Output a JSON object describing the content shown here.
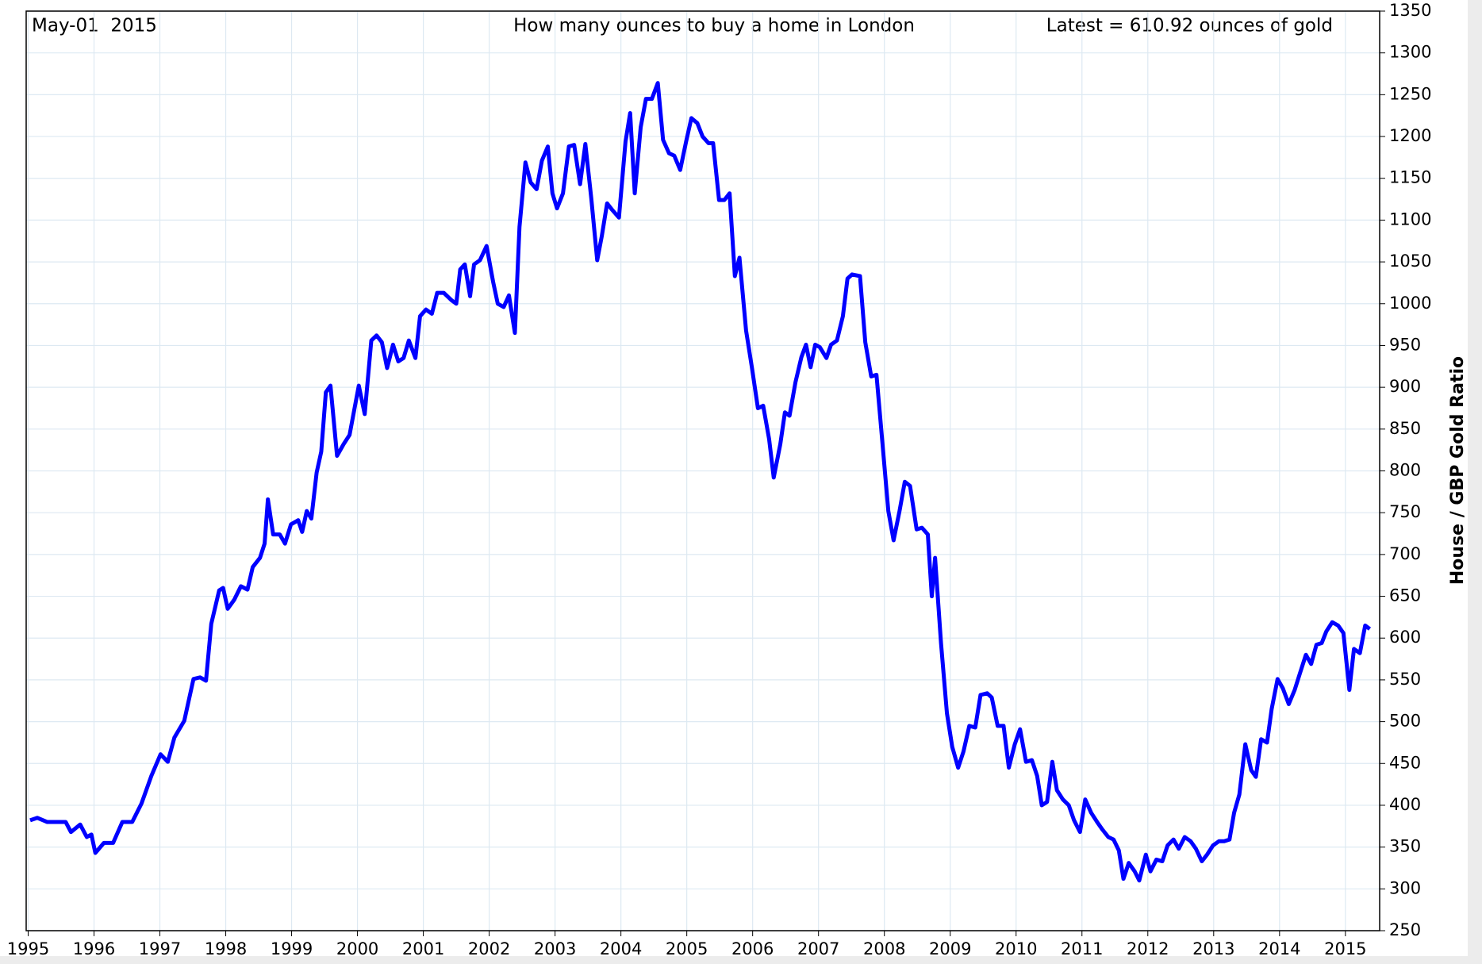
{
  "chart_data": {
    "type": "line",
    "title": "How many ounces to buy a home in London",
    "subtitle": "May-01  2015",
    "annotations": [
      "Latest = 610.92 ounces of gold"
    ],
    "y_label": "House / GBP Gold Ratio",
    "y_axis_side": "right",
    "grid": true,
    "xlim": [
      1994.97,
      2015.52
    ],
    "xticks": [
      1995,
      1996,
      1997,
      1998,
      1999,
      2000,
      2001,
      2002,
      2003,
      2004,
      2005,
      2006,
      2007,
      2008,
      2009,
      2010,
      2011,
      2012,
      2013,
      2014,
      2015
    ],
    "ylim": [
      250,
      1350
    ],
    "yticks": [
      250,
      300,
      350,
      400,
      450,
      500,
      550,
      600,
      650,
      700,
      750,
      800,
      850,
      900,
      950,
      1000,
      1050,
      1100,
      1150,
      1200,
      1250,
      1300,
      1350
    ],
    "series": [
      {
        "name": "House / GBP Gold Ratio",
        "color": "#0000ff",
        "x": [
          1995.03,
          1995.14,
          1995.29,
          1995.57,
          1995.65,
          1995.79,
          1995.89,
          1995.96,
          1996.02,
          1996.15,
          1996.29,
          1996.43,
          1996.58,
          1996.72,
          1996.87,
          1997.01,
          1997.12,
          1997.22,
          1997.37,
          1997.51,
          1997.61,
          1997.7,
          1997.78,
          1997.9,
          1997.96,
          1998.03,
          1998.13,
          1998.23,
          1998.33,
          1998.41,
          1998.52,
          1998.59,
          1998.64,
          1998.72,
          1998.82,
          1998.9,
          1998.99,
          1999.1,
          1999.16,
          1999.23,
          1999.3,
          1999.38,
          1999.45,
          1999.52,
          1999.59,
          1999.69,
          1999.79,
          1999.88,
          2000.02,
          2000.11,
          2000.21,
          2000.29,
          2000.37,
          2000.45,
          2000.54,
          2000.62,
          2000.7,
          2000.78,
          2000.88,
          2000.95,
          2001.04,
          2001.13,
          2001.21,
          2001.31,
          2001.43,
          2001.5,
          2001.56,
          2001.63,
          2001.71,
          2001.77,
          2001.86,
          2001.96,
          2002.06,
          2002.13,
          2002.22,
          2002.3,
          2002.39,
          2002.46,
          2002.55,
          2002.63,
          2002.72,
          2002.8,
          2002.89,
          2002.96,
          2003.03,
          2003.12,
          2003.21,
          2003.29,
          2003.38,
          2003.46,
          2003.55,
          2003.64,
          2003.71,
          2003.79,
          2003.87,
          2003.97,
          2004.07,
          2004.14,
          2004.21,
          2004.3,
          2004.38,
          2004.47,
          2004.56,
          2004.64,
          2004.73,
          2004.81,
          2004.9,
          2004.99,
          2005.07,
          2005.16,
          2005.24,
          2005.33,
          2005.4,
          2005.49,
          2005.57,
          2005.65,
          2005.73,
          2005.8,
          2005.9,
          2005.99,
          2006.08,
          2006.16,
          2006.25,
          2006.32,
          2006.42,
          2006.49,
          2006.56,
          2006.65,
          2006.74,
          2006.81,
          2006.88,
          2006.95,
          2007.02,
          2007.12,
          2007.19,
          2007.28,
          2007.37,
          2007.44,
          2007.51,
          2007.63,
          2007.71,
          2007.8,
          2007.88,
          2007.97,
          2008.06,
          2008.14,
          2008.23,
          2008.31,
          2008.39,
          2008.49,
          2008.57,
          2008.66,
          2008.72,
          2008.77,
          2008.86,
          2008.95,
          2009.03,
          2009.12,
          2009.2,
          2009.29,
          2009.38,
          2009.46,
          2009.56,
          2009.63,
          2009.72,
          2009.81,
          2009.89,
          2009.98,
          2010.06,
          2010.15,
          2010.24,
          2010.32,
          2010.39,
          2010.47,
          2010.55,
          2010.62,
          2010.71,
          2010.8,
          2010.88,
          2010.97,
          2011.05,
          2011.14,
          2011.23,
          2011.31,
          2011.4,
          2011.48,
          2011.56,
          2011.63,
          2011.71,
          2011.8,
          2011.87,
          2011.97,
          2012.04,
          2012.13,
          2012.22,
          2012.3,
          2012.39,
          2012.47,
          2012.56,
          2012.65,
          2012.73,
          2012.82,
          2012.9,
          2012.99,
          2013.08,
          2013.16,
          2013.24,
          2013.31,
          2013.39,
          2013.48,
          2013.57,
          2013.64,
          2013.72,
          2013.81,
          2013.88,
          2013.97,
          2014.05,
          2014.14,
          2014.23,
          2014.31,
          2014.4,
          2014.48,
          2014.56,
          2014.64,
          2014.71,
          2014.8,
          2014.89,
          2014.97,
          2015.06,
          2015.13,
          2015.22,
          2015.3,
          2015.37
        ],
        "values": [
          382,
          385,
          380,
          380,
          368,
          377,
          362,
          365,
          343,
          355,
          355,
          380,
          380,
          402,
          435,
          461,
          452,
          481,
          501,
          551,
          553,
          549,
          617,
          657,
          660,
          635,
          646,
          662,
          658,
          685,
          696,
          713,
          766,
          724,
          724,
          713,
          736,
          741,
          727,
          752,
          743,
          798,
          823,
          894,
          902,
          818,
          832,
          843,
          902,
          868,
          956,
          962,
          954,
          923,
          951,
          931,
          935,
          956,
          935,
          985,
          993,
          988,
          1013,
          1013,
          1004,
          1000,
          1041,
          1047,
          1009,
          1047,
          1052,
          1069,
          1026,
          1000,
          996,
          1010,
          965,
          1092,
          1169,
          1145,
          1137,
          1171,
          1188,
          1132,
          1114,
          1132,
          1188,
          1190,
          1143,
          1191,
          1126,
          1052,
          1081,
          1120,
          1112,
          1103,
          1194,
          1228,
          1132,
          1211,
          1245,
          1245,
          1264,
          1196,
          1180,
          1177,
          1160,
          1194,
          1222,
          1216,
          1200,
          1192,
          1192,
          1124,
          1124,
          1132,
          1033,
          1055,
          968,
          923,
          875,
          878,
          838,
          792,
          832,
          870,
          866,
          906,
          936,
          951,
          924,
          951,
          948,
          935,
          951,
          956,
          985,
          1030,
          1035,
          1033,
          954,
          913,
          915,
          834,
          752,
          717,
          752,
          787,
          782,
          730,
          732,
          724,
          650,
          696,
          594,
          510,
          470,
          445,
          464,
          495,
          493,
          532,
          534,
          529,
          495,
          495,
          445,
          473,
          491,
          452,
          454,
          435,
          400,
          404,
          452,
          418,
          407,
          400,
          382,
          368,
          407,
          391,
          380,
          371,
          362,
          359,
          346,
          312,
          331,
          321,
          310,
          341,
          321,
          335,
          333,
          352,
          359,
          348,
          362,
          357,
          348,
          333,
          341,
          352,
          357,
          357,
          359,
          391,
          413,
          473,
          442,
          434,
          479,
          475,
          515,
          551,
          540,
          521,
          538,
          558,
          580,
          569,
          592,
          594,
          608,
          619,
          615,
          606,
          538,
          587,
          582,
          615,
          610.92
        ]
      }
    ]
  }
}
